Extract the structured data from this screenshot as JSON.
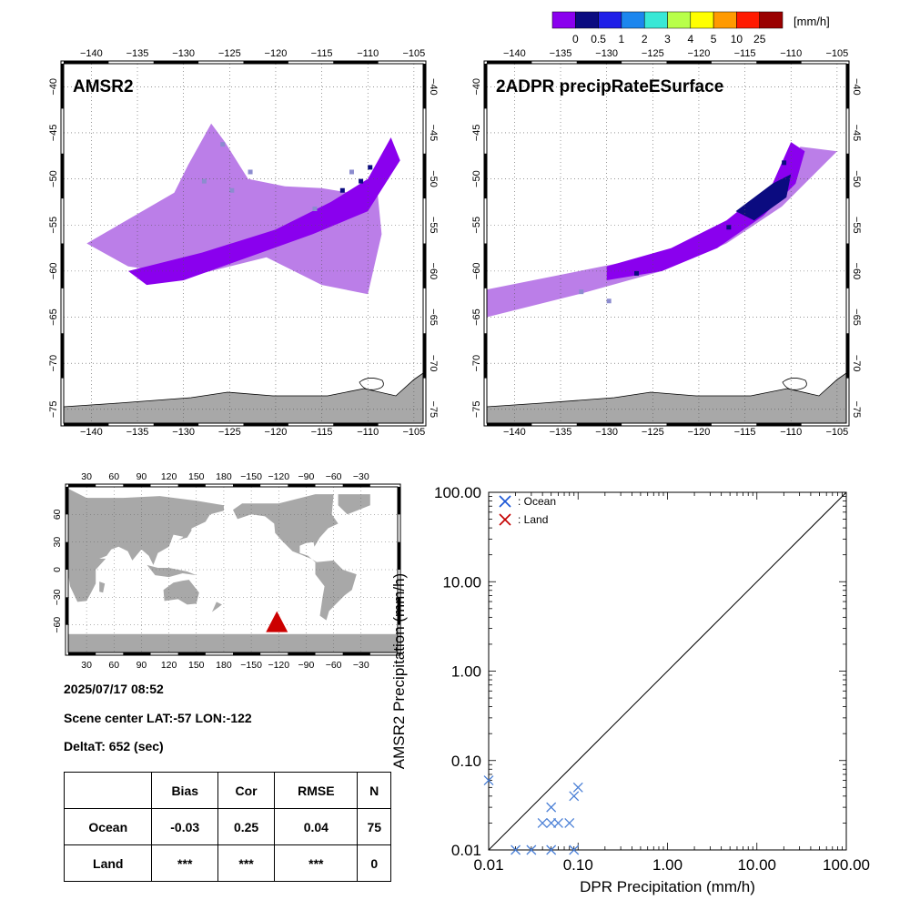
{
  "colorbar": {
    "unit": "[mm/h]",
    "colors": [
      "#8a00ee",
      "#0b0b80",
      "#1f1fe8",
      "#1c86ee",
      "#38e8d6",
      "#b8ff4a",
      "#ffff00",
      "#ff9a00",
      "#ff1a00",
      "#9a0000"
    ],
    "tick_labels": [
      "0",
      "0.5",
      "1",
      "2",
      "3",
      "4",
      "5",
      "10",
      "25"
    ]
  },
  "maps": {
    "lon_ticks": [
      "−140",
      "−135",
      "−130",
      "−125",
      "−120",
      "−115",
      "−110",
      "−105"
    ],
    "lat_ticks": [
      "−40",
      "−45",
      "−50",
      "−55",
      "−60",
      "−65",
      "−70",
      "−75"
    ],
    "amsr2_title": "AMSR2",
    "dpr_title": "2ADPR precipRateESurface",
    "land_color": "#a8a8a8",
    "swath_light_color": "#bb7ee8",
    "swath_band_color": "#8a00ee"
  },
  "world_map": {
    "top_ticks": [
      "30",
      "60",
      "90",
      "120",
      "150",
      "180",
      "−150",
      "−120",
      "−90",
      "−60",
      "−30"
    ],
    "bottom_ticks": [
      "30",
      "60",
      "90",
      "120",
      "150",
      "180",
      "−150",
      "−120",
      "−90",
      "−60",
      "−30"
    ],
    "lat_ticks": [
      "60",
      "30",
      "0",
      "−30",
      "−60"
    ],
    "marker_color": "#cc0000",
    "land_color": "#a8a8a8"
  },
  "info": {
    "datetime": "2025/07/17 08:52",
    "scene_center": "Scene center LAT:-57   LON:-122",
    "deltat": "DeltaT:  652 (sec)"
  },
  "stats_table": {
    "headers": [
      "",
      "Bias",
      "Cor",
      "RMSE",
      "N"
    ],
    "rows": [
      {
        "label": "Ocean",
        "bias": "-0.03",
        "cor": "0.25",
        "rmse": "0.04",
        "n": "75"
      },
      {
        "label": "Land",
        "bias": "***",
        "cor": "***",
        "rmse": "***",
        "n": "0"
      }
    ]
  },
  "chart_data": {
    "type": "scatter",
    "xlabel": "DPR Precipitation (mm/h)",
    "ylabel": "AMSR2 Precipitation (mm/h)",
    "xscale": "log",
    "yscale": "log",
    "xlim": [
      0.01,
      100
    ],
    "ylim": [
      0.01,
      100
    ],
    "tick_values": [
      0.01,
      0.1,
      1,
      10,
      100
    ],
    "tick_labels": [
      "0.01",
      "0.10",
      "1.00",
      "10.00",
      "100.00"
    ],
    "legend": [
      {
        "name": ": Ocean",
        "color": "#1a55d6"
      },
      {
        "name": ": Land",
        "color": "#c40000"
      }
    ],
    "legend_position": "top-left",
    "series": [
      {
        "name": ": Ocean",
        "color": "#4a7fd6",
        "points": [
          [
            0.01,
            0.06
          ],
          [
            0.02,
            0.01
          ],
          [
            0.03,
            0.01
          ],
          [
            0.04,
            0.02
          ],
          [
            0.05,
            0.01
          ],
          [
            0.05,
            0.03
          ],
          [
            0.05,
            0.02
          ],
          [
            0.06,
            0.02
          ],
          [
            0.08,
            0.02
          ],
          [
            0.09,
            0.01
          ],
          [
            0.09,
            0.04
          ],
          [
            0.1,
            0.05
          ]
        ]
      },
      {
        "name": ": Land",
        "color": "#c40000",
        "points": []
      }
    ],
    "reference_line": "1:1"
  }
}
